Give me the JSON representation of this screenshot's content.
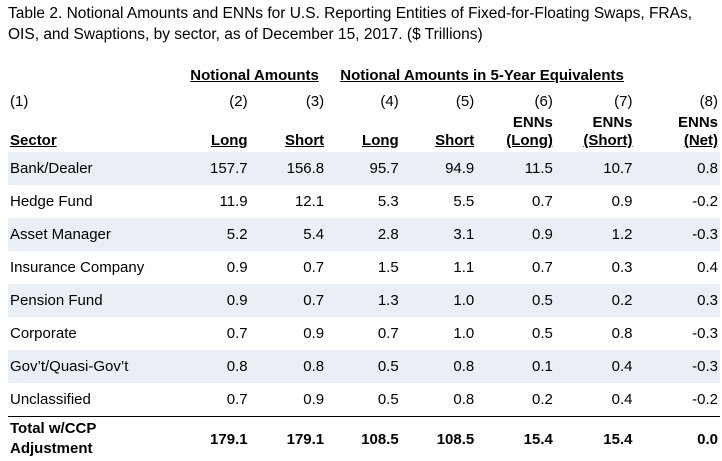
{
  "title": "Table 2. Notional Amounts and ENNs for U.S. Reporting Entities of Fixed-for-Floating Swaps, FRAs, OIS, and Swaptions, by sector, as of December 15, 2017. ($ Trillions)",
  "groups": {
    "notional": "Notional Amounts",
    "five_year": "Notional Amounts in 5-Year Equivalents"
  },
  "col_numbers": [
    "(1)",
    "(2)",
    "(3)",
    "(4)",
    "(5)",
    "(6)",
    "(7)",
    "(8)"
  ],
  "headers": {
    "sector": "Sector",
    "long": "Long",
    "short": "Short",
    "long5": "Long",
    "short5": "Short",
    "enn_long_1": "ENNs",
    "enn_long_2": "(Long)",
    "enn_short_1": "ENNs",
    "enn_short_2": "(Short)",
    "enn_net_1": "ENNs",
    "enn_net_2": "(Net)"
  },
  "rows": [
    [
      "Bank/Dealer",
      "157.7",
      "156.8",
      "95.7",
      "94.9",
      "11.5",
      "10.7",
      "0.8"
    ],
    [
      "Hedge Fund",
      "11.9",
      "12.1",
      "5.3",
      "5.5",
      "0.7",
      "0.9",
      "-0.2"
    ],
    [
      "Asset Manager",
      "5.2",
      "5.4",
      "2.8",
      "3.1",
      "0.9",
      "1.2",
      "-0.3"
    ],
    [
      "Insurance Company",
      "0.9",
      "0.7",
      "1.5",
      "1.1",
      "0.7",
      "0.3",
      "0.4"
    ],
    [
      "Pension Fund",
      "0.9",
      "0.7",
      "1.3",
      "1.0",
      "0.5",
      "0.2",
      "0.3"
    ],
    [
      "Corporate",
      "0.7",
      "0.9",
      "0.7",
      "1.0",
      "0.5",
      "0.8",
      "-0.3"
    ],
    [
      "Gov’t/Quasi-Gov’t",
      "0.8",
      "0.8",
      "0.5",
      "0.8",
      "0.1",
      "0.4",
      "-0.3"
    ],
    [
      "Unclassified",
      "0.7",
      "0.9",
      "0.5",
      "0.8",
      "0.2",
      "0.4",
      "-0.2"
    ]
  ],
  "total": {
    "label_1": "Total w/CCP",
    "label_2": "Adjustment",
    "values": [
      "179.1",
      "179.1",
      "108.5",
      "108.5",
      "15.4",
      "15.4",
      "0.0"
    ]
  }
}
